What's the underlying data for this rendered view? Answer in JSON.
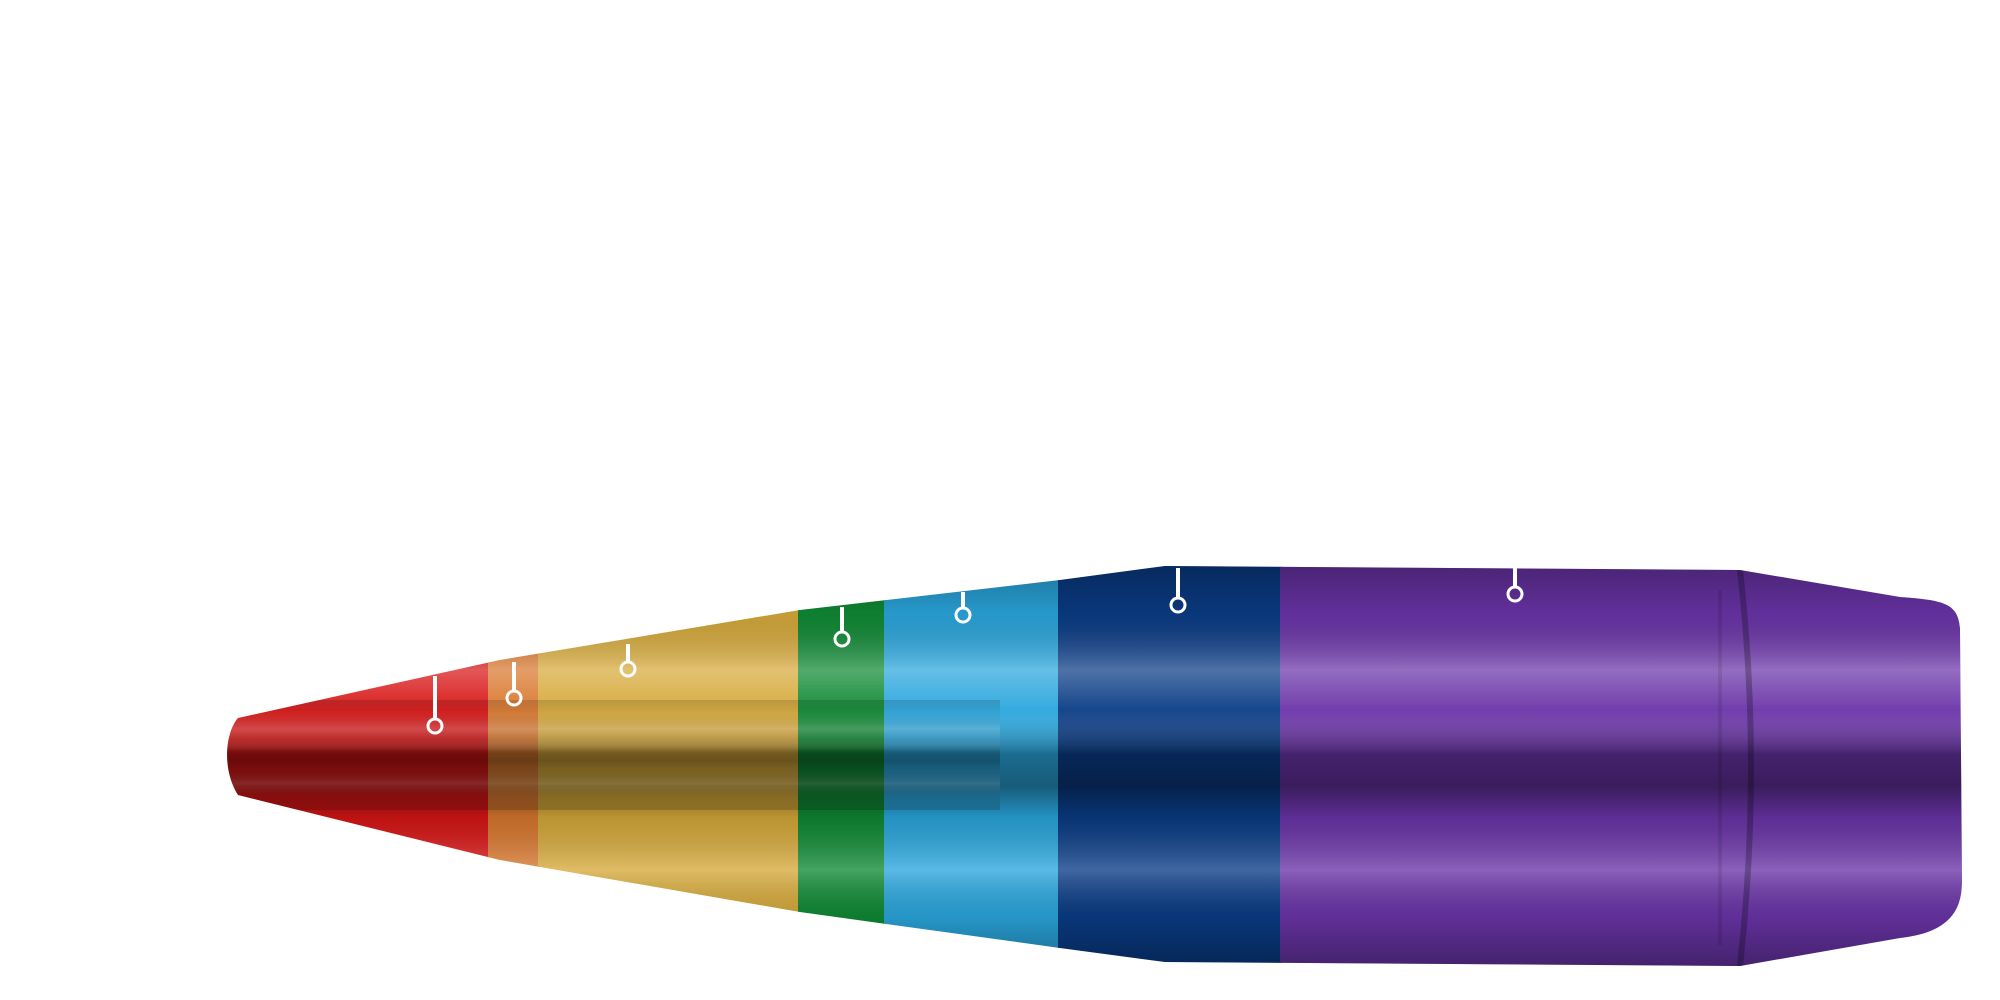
{
  "diagram": {
    "subject": "bullet",
    "orientation": "tip-left",
    "segments": [
      {
        "id": "tip",
        "color": "#d81515"
      },
      {
        "id": "ring-orange",
        "color": "#d9782e"
      },
      {
        "id": "ogive-yellow",
        "color": "#d6a93a"
      },
      {
        "id": "band-green",
        "color": "#0f8a34"
      },
      {
        "id": "band-light-blue",
        "color": "#2aa6dd"
      },
      {
        "id": "band-dark-blue",
        "color": "#0a3c86"
      },
      {
        "id": "body-purple",
        "color": "#6a34a8"
      }
    ],
    "callouts": [
      {
        "segment": "tip"
      },
      {
        "segment": "ring-orange"
      },
      {
        "segment": "ogive-yellow"
      },
      {
        "segment": "band-green"
      },
      {
        "segment": "band-light-blue"
      },
      {
        "segment": "band-dark-blue"
      },
      {
        "segment": "body-purple"
      }
    ],
    "callout_color": "#ffffff"
  }
}
